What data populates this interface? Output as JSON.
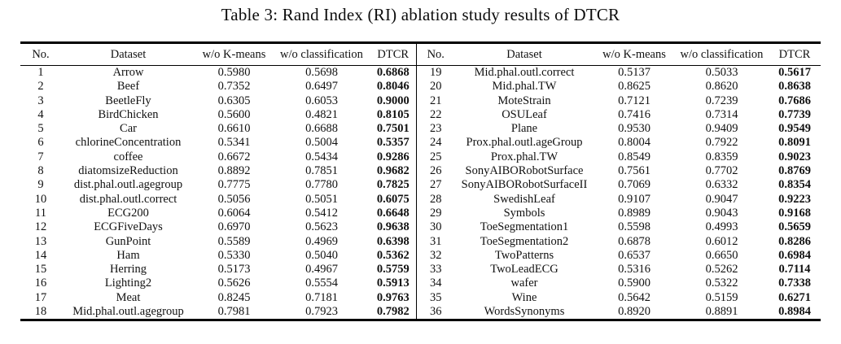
{
  "caption": "Table 3: Rand Index (RI) ablation study results of DTCR",
  "table": {
    "headers": [
      "No.",
      "Dataset",
      "w/o K-means",
      "w/o classification",
      "DTCR"
    ],
    "left_rows": [
      [
        "1",
        "Arrow",
        "0.5980",
        "0.5698",
        "0.6868"
      ],
      [
        "2",
        "Beef",
        "0.7352",
        "0.6497",
        "0.8046"
      ],
      [
        "3",
        "BeetleFly",
        "0.6305",
        "0.6053",
        "0.9000"
      ],
      [
        "4",
        "BirdChicken",
        "0.5600",
        "0.4821",
        "0.8105"
      ],
      [
        "5",
        "Car",
        "0.6610",
        "0.6688",
        "0.7501"
      ],
      [
        "6",
        "chlorineConcentration",
        "0.5341",
        "0.5004",
        "0.5357"
      ],
      [
        "7",
        "coffee",
        "0.6672",
        "0.5434",
        "0.9286"
      ],
      [
        "8",
        "diatomsizeReduction",
        "0.8892",
        "0.7851",
        "0.9682"
      ],
      [
        "9",
        "dist.phal.outl.agegroup",
        "0.7775",
        "0.7780",
        "0.7825"
      ],
      [
        "10",
        "dist.phal.outl.correct",
        "0.5056",
        "0.5051",
        "0.6075"
      ],
      [
        "11",
        "ECG200",
        "0.6064",
        "0.5412",
        "0.6648"
      ],
      [
        "12",
        "ECGFiveDays",
        "0.6970",
        "0.5623",
        "0.9638"
      ],
      [
        "13",
        "GunPoint",
        "0.5589",
        "0.4969",
        "0.6398"
      ],
      [
        "14",
        "Ham",
        "0.5330",
        "0.5040",
        "0.5362"
      ],
      [
        "15",
        "Herring",
        "0.5173",
        "0.4967",
        "0.5759"
      ],
      [
        "16",
        "Lighting2",
        "0.5626",
        "0.5554",
        "0.5913"
      ],
      [
        "17",
        "Meat",
        "0.8245",
        "0.7181",
        "0.9763"
      ],
      [
        "18",
        "Mid.phal.outl.agegroup",
        "0.7981",
        "0.7923",
        "0.7982"
      ]
    ],
    "right_rows": [
      [
        "19",
        "Mid.phal.outl.correct",
        "0.5137",
        "0.5033",
        "0.5617"
      ],
      [
        "20",
        "Mid.phal.TW",
        "0.8625",
        "0.8620",
        "0.8638"
      ],
      [
        "21",
        "MoteStrain",
        "0.7121",
        "0.7239",
        "0.7686"
      ],
      [
        "22",
        "OSULeaf",
        "0.7416",
        "0.7314",
        "0.7739"
      ],
      [
        "23",
        "Plane",
        "0.9530",
        "0.9409",
        "0.9549"
      ],
      [
        "24",
        "Prox.phal.outl.ageGroup",
        "0.8004",
        "0.7922",
        "0.8091"
      ],
      [
        "25",
        "Prox.phal.TW",
        "0.8549",
        "0.8359",
        "0.9023"
      ],
      [
        "26",
        "SonyAIBORobotSurface",
        "0.7561",
        "0.7702",
        "0.8769"
      ],
      [
        "27",
        "SonyAIBORobotSurfaceII",
        "0.7069",
        "0.6332",
        "0.8354"
      ],
      [
        "28",
        "SwedishLeaf",
        "0.9107",
        "0.9047",
        "0.9223"
      ],
      [
        "29",
        "Symbols",
        "0.8989",
        "0.9043",
        "0.9168"
      ],
      [
        "30",
        "ToeSegmentation1",
        "0.5598",
        "0.4993",
        "0.5659"
      ],
      [
        "31",
        "ToeSegmentation2",
        "0.6878",
        "0.6012",
        "0.8286"
      ],
      [
        "32",
        "TwoPatterns",
        "0.6537",
        "0.6650",
        "0.6984"
      ],
      [
        "33",
        "TwoLeadECG",
        "0.5316",
        "0.5262",
        "0.7114"
      ],
      [
        "34",
        "wafer",
        "0.5900",
        "0.5322",
        "0.7338"
      ],
      [
        "35",
        "Wine",
        "0.5642",
        "0.5159",
        "0.6271"
      ],
      [
        "36",
        "WordsSynonyms",
        "0.8920",
        "0.8891",
        "0.8984"
      ]
    ]
  }
}
